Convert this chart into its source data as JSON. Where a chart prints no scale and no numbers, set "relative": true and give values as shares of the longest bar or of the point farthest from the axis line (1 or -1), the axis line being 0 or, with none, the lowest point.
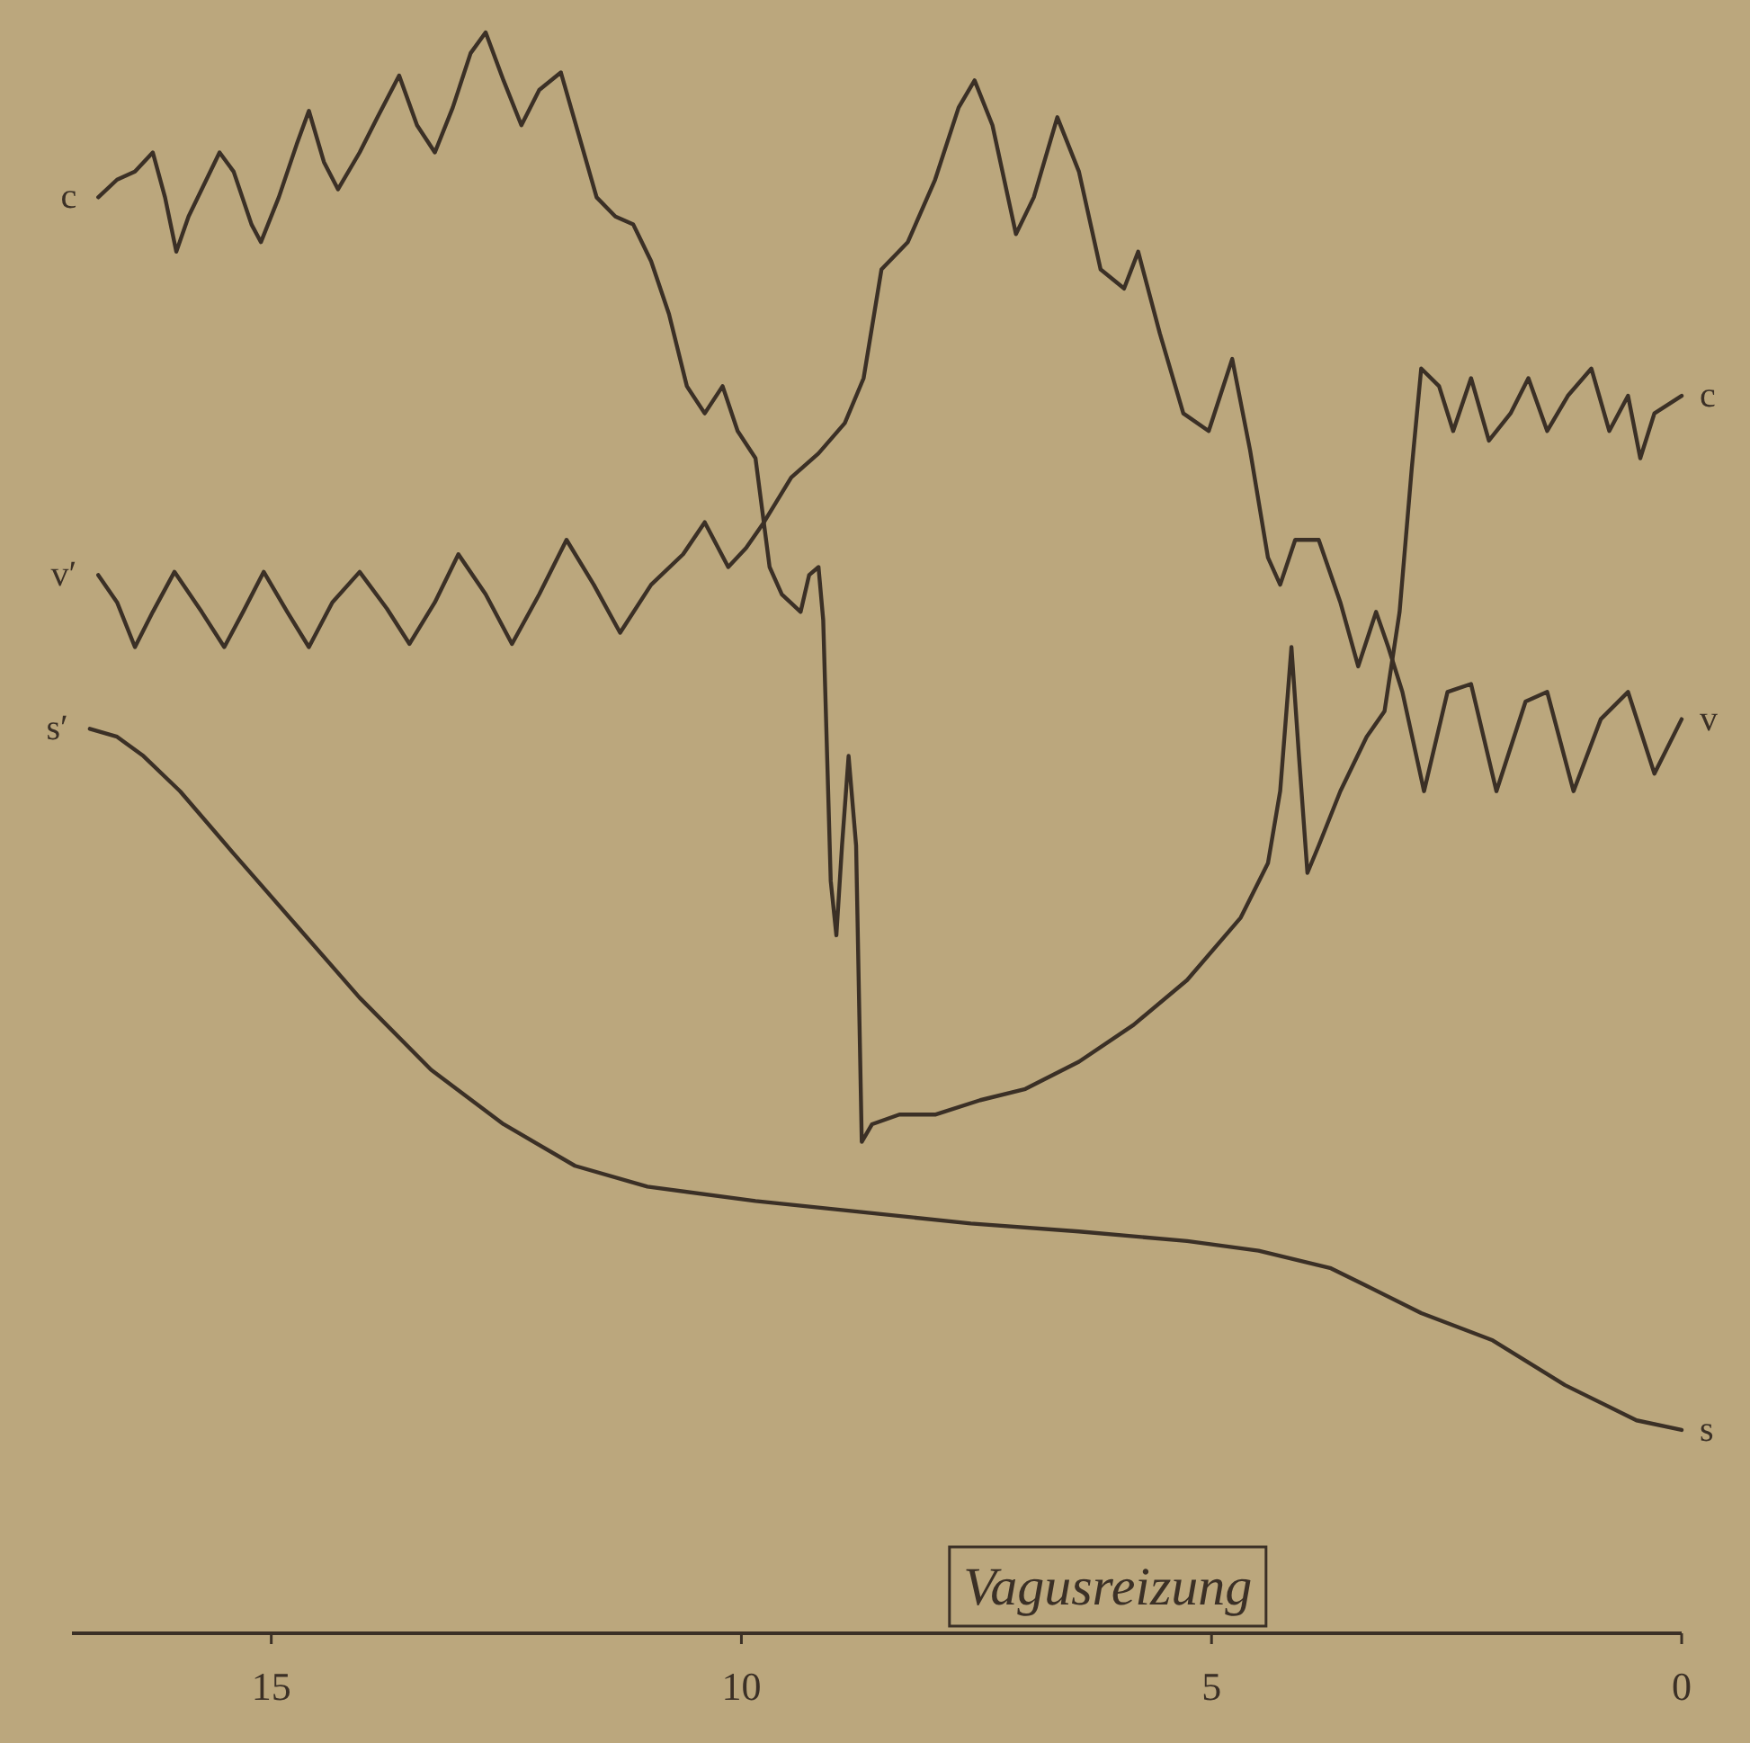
{
  "chart_data": {
    "type": "line",
    "relative": true,
    "legend": false,
    "grid": false,
    "marker": "none",
    "line_style": "solid",
    "xlim": [
      17.12,
      0
    ],
    "xticks": [
      15,
      10,
      5,
      0
    ],
    "annotations": [
      "c",
      "v′",
      "s′",
      "Vagusreizung"
    ],
    "series": [
      {
        "name": "c",
        "color": "#3b3026",
        "x": [
          16.84,
          16.64,
          16.45,
          16.26,
          16.13,
          16.01,
          15.88,
          15.69,
          15.55,
          15.4,
          15.21,
          15.11,
          14.92,
          14.73,
          14.6,
          14.44,
          14.29,
          14.06,
          13.87,
          13.64,
          13.45,
          13.26,
          13.07,
          12.88,
          12.72,
          12.53,
          12.34,
          12.15,
          11.92,
          11.73,
          11.54,
          11.34,
          11.15,
          10.96,
          10.77,
          10.58,
          10.39,
          10.2,
          10.04,
          9.85,
          9.7,
          9.57,
          9.37,
          9.28,
          9.18,
          9.13,
          9.05,
          8.99,
          8.93,
          8.86,
          8.78,
          8.72,
          8.61,
          8.32,
          7.94,
          7.46,
          6.98,
          6.41,
          5.83,
          5.26,
          4.69,
          4.4,
          4.27,
          4.15,
          4.07,
          3.98,
          3.86,
          3.63,
          3.35,
          3.16,
          3.0,
          2.87,
          2.77,
          2.58,
          2.43,
          2.24,
          2.05,
          1.82,
          1.63,
          1.43,
          1.21,
          0.96,
          0.77,
          0.57,
          0.44,
          0.29,
          0
        ],
        "values": [
          0.897,
          0.908,
          0.913,
          0.925,
          0.897,
          0.863,
          0.885,
          0.908,
          0.925,
          0.913,
          0.88,
          0.869,
          0.897,
          0.93,
          0.951,
          0.919,
          0.902,
          0.925,
          0.947,
          0.973,
          0.942,
          0.925,
          0.953,
          0.987,
          1,
          0.97,
          0.942,
          0.964,
          0.975,
          0.936,
          0.897,
          0.885,
          0.88,
          0.857,
          0.824,
          0.779,
          0.762,
          0.779,
          0.751,
          0.734,
          0.666,
          0.649,
          0.638,
          0.661,
          0.666,
          0.633,
          0.47,
          0.436,
          0.492,
          0.548,
          0.492,
          0.307,
          0.318,
          0.324,
          0.324,
          0.333,
          0.34,
          0.357,
          0.38,
          0.408,
          0.447,
          0.481,
          0.526,
          0.616,
          0.548,
          0.475,
          0.492,
          0.526,
          0.56,
          0.576,
          0.638,
          0.728,
          0.79,
          0.779,
          0.751,
          0.784,
          0.745,
          0.762,
          0.784,
          0.751,
          0.773,
          0.79,
          0.751,
          0.773,
          0.734,
          0.762,
          0.773
        ]
      },
      {
        "name": "v",
        "color": "#3b3026",
        "x": [
          16.84,
          16.64,
          16.45,
          16.26,
          16.03,
          15.74,
          15.5,
          15.3,
          15.08,
          14.83,
          14.6,
          14.35,
          14.06,
          13.77,
          13.53,
          13.26,
          13.01,
          12.72,
          12.44,
          12.15,
          11.86,
          11.57,
          11.29,
          10.96,
          10.62,
          10.39,
          10.14,
          9.95,
          9.76,
          9.47,
          9.18,
          8.9,
          8.7,
          8.51,
          8.23,
          7.94,
          7.69,
          7.52,
          7.33,
          7.08,
          6.89,
          6.64,
          6.41,
          6.18,
          5.93,
          5.78,
          5.55,
          5.3,
          5.03,
          4.78,
          4.59,
          4.4,
          4.27,
          4.11,
          3.86,
          3.63,
          3.44,
          3.25,
          3.12,
          2.97,
          2.74,
          2.49,
          2.24,
          1.97,
          1.66,
          1.43,
          1.15,
          0.86,
          0.57,
          0.29,
          0
        ],
        "values": [
          0.661,
          0.644,
          0.616,
          0.638,
          0.663,
          0.638,
          0.616,
          0.638,
          0.663,
          0.638,
          0.616,
          0.644,
          0.663,
          0.64,
          0.618,
          0.644,
          0.674,
          0.649,
          0.618,
          0.649,
          0.683,
          0.655,
          0.625,
          0.655,
          0.674,
          0.694,
          0.666,
          0.678,
          0.694,
          0.722,
          0.737,
          0.756,
          0.784,
          0.852,
          0.869,
          0.908,
          0.953,
          0.97,
          0.942,
          0.874,
          0.897,
          0.947,
          0.913,
          0.852,
          0.84,
          0.863,
          0.812,
          0.762,
          0.751,
          0.796,
          0.739,
          0.672,
          0.655,
          0.683,
          0.683,
          0.644,
          0.604,
          0.638,
          0.616,
          0.588,
          0.526,
          0.588,
          0.593,
          0.526,
          0.582,
          0.588,
          0.526,
          0.571,
          0.588,
          0.537,
          0.571
        ]
      },
      {
        "name": "s",
        "color": "#3b3026",
        "x": [
          16.93,
          16.64,
          16.36,
          15.97,
          15.4,
          14.73,
          14.06,
          13.3,
          12.53,
          11.77,
          11.0,
          9.85,
          8.7,
          7.56,
          6.41,
          5.26,
          4.5,
          3.73,
          3.35,
          2.77,
          2.01,
          1.24,
          0.48,
          0
        ],
        "values": [
          0.565,
          0.56,
          0.548,
          0.526,
          0.487,
          0.442,
          0.397,
          0.352,
          0.318,
          0.292,
          0.279,
          0.27,
          0.263,
          0.256,
          0.251,
          0.245,
          0.239,
          0.228,
          0.217,
          0.2,
          0.183,
          0.155,
          0.133,
          0.127
        ]
      }
    ]
  }
}
